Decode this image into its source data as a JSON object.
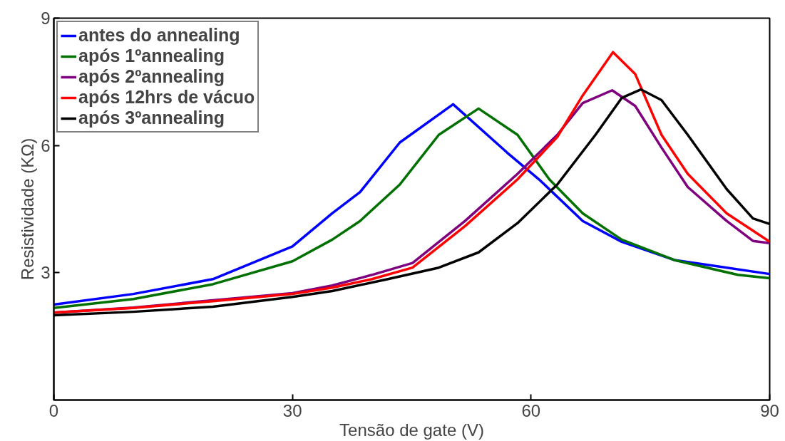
{
  "chart_data": {
    "type": "line",
    "xlabel": "Tensão de gate (V)",
    "ylabel": "Resistividade (KΩ)",
    "xlim": [
      0,
      90
    ],
    "ylim": [
      0,
      9
    ],
    "xticks": [
      0,
      30,
      60,
      90
    ],
    "yticks": [
      3,
      6,
      9
    ],
    "grid": false,
    "legend": "top left",
    "line_style": "solid",
    "marker": "none",
    "series": [
      {
        "name": "antes do annealing",
        "color": "#0000ff",
        "x": [
          0,
          10,
          20,
          30,
          35,
          38.5,
          43.5,
          50.2,
          57,
          61,
          66.5,
          71.4,
          78,
          90
        ],
        "values": [
          2.25,
          2.5,
          2.85,
          3.62,
          4.4,
          4.9,
          6.07,
          6.97,
          5.83,
          5.2,
          4.22,
          3.73,
          3.3,
          2.97
        ]
      },
      {
        "name": "após 1ºannealing",
        "color": "#007000",
        "x": [
          0,
          10,
          20,
          30,
          35,
          38.5,
          43.5,
          48.4,
          53.4,
          58.3,
          62.3,
          66.5,
          71.4,
          78,
          86,
          90
        ],
        "values": [
          2.17,
          2.38,
          2.73,
          3.27,
          3.78,
          4.22,
          5.08,
          6.25,
          6.87,
          6.25,
          5.2,
          4.4,
          3.78,
          3.3,
          2.95,
          2.87
        ]
      },
      {
        "name": "após 2ºannealing",
        "color": "#7f007f",
        "x": [
          0,
          10,
          20,
          30,
          35,
          40,
          45.1,
          51.7,
          58.3,
          63.3,
          66.5,
          70.2,
          73.1,
          76.4,
          79.7,
          84.6,
          87.9,
          90
        ],
        "values": [
          2.06,
          2.18,
          2.35,
          2.52,
          2.7,
          2.95,
          3.23,
          4.22,
          5.33,
          6.25,
          7.0,
          7.3,
          6.93,
          5.95,
          5.02,
          4.22,
          3.75,
          3.7
        ]
      },
      {
        "name": "após 12hrs de vácuo",
        "color": "#ff0000",
        "x": [
          0,
          10,
          20,
          30,
          35,
          40,
          45.1,
          51.7,
          58.3,
          63.3,
          66.5,
          70.3,
          73.1,
          76.4,
          79.7,
          84.6,
          90
        ],
        "values": [
          2.06,
          2.17,
          2.33,
          2.5,
          2.65,
          2.85,
          3.12,
          4.1,
          5.2,
          6.2,
          7.18,
          8.2,
          7.68,
          6.25,
          5.33,
          4.4,
          3.73
        ]
      },
      {
        "name": "após 3ºannealing",
        "color": "#000000",
        "x": [
          0,
          10,
          20,
          30,
          35,
          42,
          48.4,
          53.4,
          58.3,
          63.3,
          68.1,
          71.4,
          73.8,
          76.4,
          79.7,
          84.6,
          87.9,
          90
        ],
        "values": [
          2.0,
          2.08,
          2.2,
          2.43,
          2.57,
          2.85,
          3.12,
          3.48,
          4.17,
          5.08,
          6.25,
          7.12,
          7.32,
          7.07,
          6.25,
          4.97,
          4.28,
          4.15
        ]
      }
    ]
  }
}
